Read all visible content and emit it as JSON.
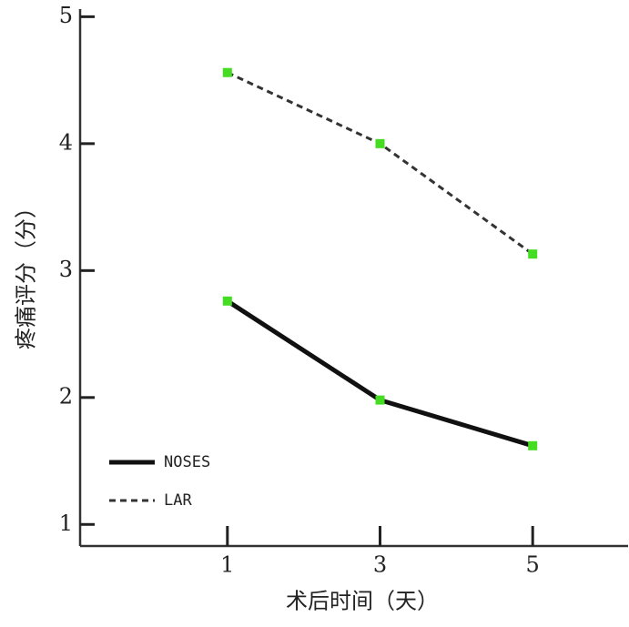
{
  "chart_data": {
    "type": "line",
    "xlabel": "术后时间（天）",
    "ylabel": "疼痛评分（分）",
    "x": [
      1,
      3,
      5
    ],
    "series": [
      {
        "name": "NOSES",
        "color": "#111111",
        "linestyle": "solid",
        "marker_color": "#44dd22",
        "values": [
          2.76,
          1.98,
          1.62
        ]
      },
      {
        "name": "LAR",
        "color": "#333333",
        "linestyle": "dashed",
        "marker_color": "#44dd22",
        "values": [
          4.56,
          4.0,
          3.13
        ]
      }
    ],
    "xlim": [
      -0.93,
      6.25
    ],
    "xticks": [
      1,
      3,
      5
    ],
    "ylim": [
      0.83,
      5.06
    ],
    "yticks": [
      1,
      2,
      3,
      4,
      5
    ],
    "legend": "lower left"
  }
}
